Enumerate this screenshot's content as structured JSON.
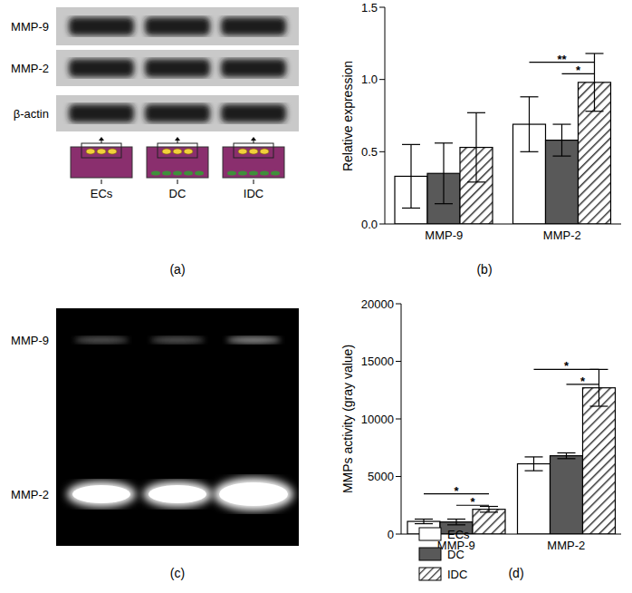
{
  "blot": {
    "panel": "(a)",
    "rows": [
      "MMP-9",
      "MMP-2",
      "β-actin"
    ],
    "lanes": [
      "ECs",
      "DC",
      "IDC"
    ]
  },
  "zymogram": {
    "panel": "(c)",
    "rows": [
      "MMP-9",
      "MMP-2"
    ]
  },
  "chart_data": [
    {
      "type": "bar",
      "title": "(b)",
      "y_label": "Relative expression",
      "categories": [
        "MMP-9",
        "MMP-2"
      ],
      "ylim": [
        0,
        1.5
      ],
      "yticks": [
        {
          "value": 0,
          "label": "0.0"
        },
        {
          "value": 0.5,
          "label": "0.5"
        },
        {
          "value": 1,
          "label": "1.0"
        },
        {
          "value": 1.5,
          "label": "1.5"
        }
      ],
      "series": [
        {
          "name": "ECs",
          "color": "#ffffff",
          "values": [
            0.33,
            0.69
          ],
          "errors": [
            0.22,
            0.19
          ]
        },
        {
          "name": "DC",
          "color": "#595959",
          "values": [
            0.35,
            0.58
          ],
          "errors": [
            0.21,
            0.11
          ]
        },
        {
          "name": "IDC",
          "color": "#333333",
          "values": [
            0.53,
            0.98
          ],
          "errors": [
            0.24,
            0.2
          ]
        }
      ],
      "annotations": [
        {
          "category": "MMP-2",
          "from": "ECs",
          "to": "IDC",
          "y": 1.12,
          "text": "**"
        },
        {
          "category": "MMP-2",
          "from": "DC",
          "to": "IDC",
          "y": 1.04,
          "text": "*"
        }
      ]
    },
    {
      "type": "bar",
      "title": "(d)",
      "y_label": "MMPs activity (gray value)",
      "categories": [
        "MMP-9",
        "MMP-2"
      ],
      "ylim": [
        0,
        20000
      ],
      "yticks": [
        0,
        5000,
        10000,
        15000,
        20000
      ],
      "legend": "bottom",
      "series": [
        {
          "name": "ECs",
          "color": "#ffffff",
          "values": [
            1100,
            6100
          ],
          "errors": [
            200,
            600
          ]
        },
        {
          "name": "DC",
          "color": "#595959",
          "values": [
            1050,
            6800
          ],
          "errors": [
            250,
            250
          ]
        },
        {
          "name": "IDC",
          "color": "#333333",
          "values": [
            2150,
            12700
          ],
          "errors": [
            250,
            1600
          ]
        }
      ],
      "annotations": [
        {
          "category": "MMP-9",
          "from": "ECs",
          "to": "IDC",
          "y": 3500,
          "text": "*"
        },
        {
          "category": "MMP-9",
          "from": "DC",
          "to": "IDC",
          "y": 2500,
          "text": "*"
        },
        {
          "category": "MMP-2",
          "from": "ECs",
          "to": "IDC",
          "y": 14300,
          "text": "*"
        },
        {
          "category": "MMP-2",
          "from": "DC",
          "to": "IDC",
          "y": 13000,
          "text": "*"
        }
      ]
    }
  ]
}
